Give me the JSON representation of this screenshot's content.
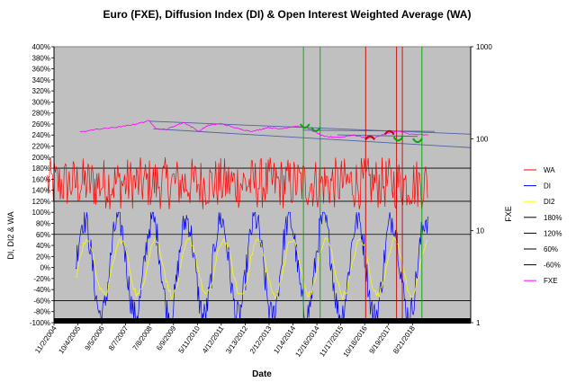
{
  "chart_data": {
    "type": "line",
    "title": "Euro (FXE), Diffusion Index (DI) & Open Interest Weighted Average (WA)",
    "xlabel": "Date",
    "ylabel": "DI, DI2 & WA",
    "y2label": "FXE",
    "ylim": [
      -100,
      400
    ],
    "y2lim": [
      1,
      1000
    ],
    "y2_scale": "log",
    "grid": false,
    "legend_position": "right",
    "x_ticks": [
      "11/2/2004",
      "10/4/2005",
      "9/5/2006",
      "8/7/2007",
      "7/8/2008",
      "6/9/2009",
      "5/11/2010",
      "4/12/2011",
      "3/13/2012",
      "2/12/2013",
      "1/14/2014",
      "12/16/2014",
      "11/17/2015",
      "10/18/2016",
      "9/19/2017",
      "8/21/2018"
    ],
    "y_ticks": [
      "-100%",
      "-80%",
      "-60%",
      "-40%",
      "-20%",
      "0%",
      "20%",
      "40%",
      "60%",
      "80%",
      "100%",
      "120%",
      "140%",
      "160%",
      "180%",
      "200%",
      "220%",
      "240%",
      "260%",
      "280%",
      "300%",
      "320%",
      "340%",
      "360%",
      "380%",
      "400%"
    ],
    "y2_ticks": [
      "1",
      "10",
      "100",
      "1000"
    ],
    "x_span": [
      "11/2/2004",
      "11/17/2020"
    ],
    "reference_lines": [
      {
        "name": "180%",
        "value": 180,
        "color": "#000000"
      },
      {
        "name": "120%",
        "value": 120,
        "color": "#000000"
      },
      {
        "name": "60%",
        "value": 60,
        "color": "#000000"
      },
      {
        "name": "-60%",
        "value": -60,
        "color": "#000000"
      }
    ],
    "series": [
      {
        "name": "WA",
        "color": "#ff0000",
        "axis": "left",
        "range": [
          100,
          200
        ],
        "start": "8/1/2004",
        "end": "4/1/2019"
      },
      {
        "name": "DI",
        "color": "#0000ff",
        "axis": "left",
        "range": [
          -100,
          100
        ],
        "start": "9/1/2005",
        "end": "4/1/2019"
      },
      {
        "name": "DI2",
        "color": "#ffff00",
        "axis": "left",
        "range": [
          -60,
          60
        ],
        "start": "9/1/2005",
        "end": "4/1/2019"
      },
      {
        "name": "180%",
        "color": "#000000",
        "axis": "left"
      },
      {
        "name": "120%",
        "color": "#000000",
        "axis": "left"
      },
      {
        "name": "60%",
        "color": "#000000",
        "axis": "left"
      },
      {
        "name": "-60%",
        "color": "#000000",
        "axis": "left"
      },
      {
        "name": "FXE",
        "color": "#ff00ff",
        "axis": "right",
        "start": "11/2/2005",
        "end": "4/1/2019",
        "points": [
          [
            "11/2/2005",
            118
          ],
          [
            "6/1/2006",
            126
          ],
          [
            "1/1/2007",
            131
          ],
          [
            "7/1/2007",
            136
          ],
          [
            "1/1/2008",
            145
          ],
          [
            "7/1/2008",
            157
          ],
          [
            "10/15/2008",
            128
          ],
          [
            "3/1/2009",
            126
          ],
          [
            "11/1/2009",
            150
          ],
          [
            "6/1/2010",
            120
          ],
          [
            "10/1/2010",
            139
          ],
          [
            "4/1/2011",
            146
          ],
          [
            "1/1/2012",
            127
          ],
          [
            "7/1/2012",
            120
          ],
          [
            "2/1/2013",
            133
          ],
          [
            "7/1/2013",
            128
          ],
          [
            "3/1/2014",
            137
          ],
          [
            "8/1/2014",
            130
          ],
          [
            "1/1/2015",
            114
          ],
          [
            "4/1/2015",
            105
          ],
          [
            "12/1/2015",
            104
          ],
          [
            "5/1/2016",
            110
          ],
          [
            "12/1/2016",
            101
          ],
          [
            "4/1/2017",
            104
          ],
          [
            "9/1/2017",
            115
          ],
          [
            "2/1/2018",
            121
          ],
          [
            "8/1/2018",
            112
          ],
          [
            "4/1/2019",
            109
          ]
        ]
      }
    ],
    "trendlines": [
      {
        "axis": "right",
        "from": [
          "7/1/2008",
          155
        ],
        "to": [
          "11/17/2020",
          112
        ]
      },
      {
        "axis": "right",
        "from": [
          "9/1/2008",
          128
        ],
        "to": [
          "11/17/2020",
          80
        ]
      },
      {
        "axis": "right",
        "from": [
          "6/1/2014",
          124
        ],
        "to": [
          "7/1/2019",
          120
        ]
      },
      {
        "axis": "right",
        "from": [
          "10/1/2015",
          110
        ],
        "to": [
          "11/1/2018",
          106
        ]
      }
    ],
    "vertical_markers": [
      {
        "date": "6/10/2014",
        "color": "#00aa00"
      },
      {
        "date": "2/1/2015",
        "color": "#00aa00"
      },
      {
        "date": "11/1/2016",
        "color": "#cc0000"
      },
      {
        "date": "1/10/2018",
        "color": "#cc0000"
      },
      {
        "date": "4/1/2018",
        "color": "#cc0000"
      },
      {
        "date": "1/1/2019",
        "color": "#00aa00"
      }
    ],
    "arc_markers": [
      {
        "date": "7/1/2014",
        "value": 138,
        "color": "#00aa00",
        "orientation": "down"
      },
      {
        "date": "12/1/2014",
        "value": 127,
        "color": "#00aa00",
        "orientation": "down"
      },
      {
        "date": "1/1/2017",
        "value": 102,
        "color": "#cc0000",
        "orientation": "up"
      },
      {
        "date": "10/1/2017",
        "value": 116,
        "color": "#cc0000",
        "orientation": "up"
      },
      {
        "date": "2/1/2018",
        "value": 100,
        "color": "#00aa00",
        "orientation": "down"
      },
      {
        "date": "11/1/2018",
        "value": 96,
        "color": "#00aa00",
        "orientation": "down"
      }
    ]
  }
}
